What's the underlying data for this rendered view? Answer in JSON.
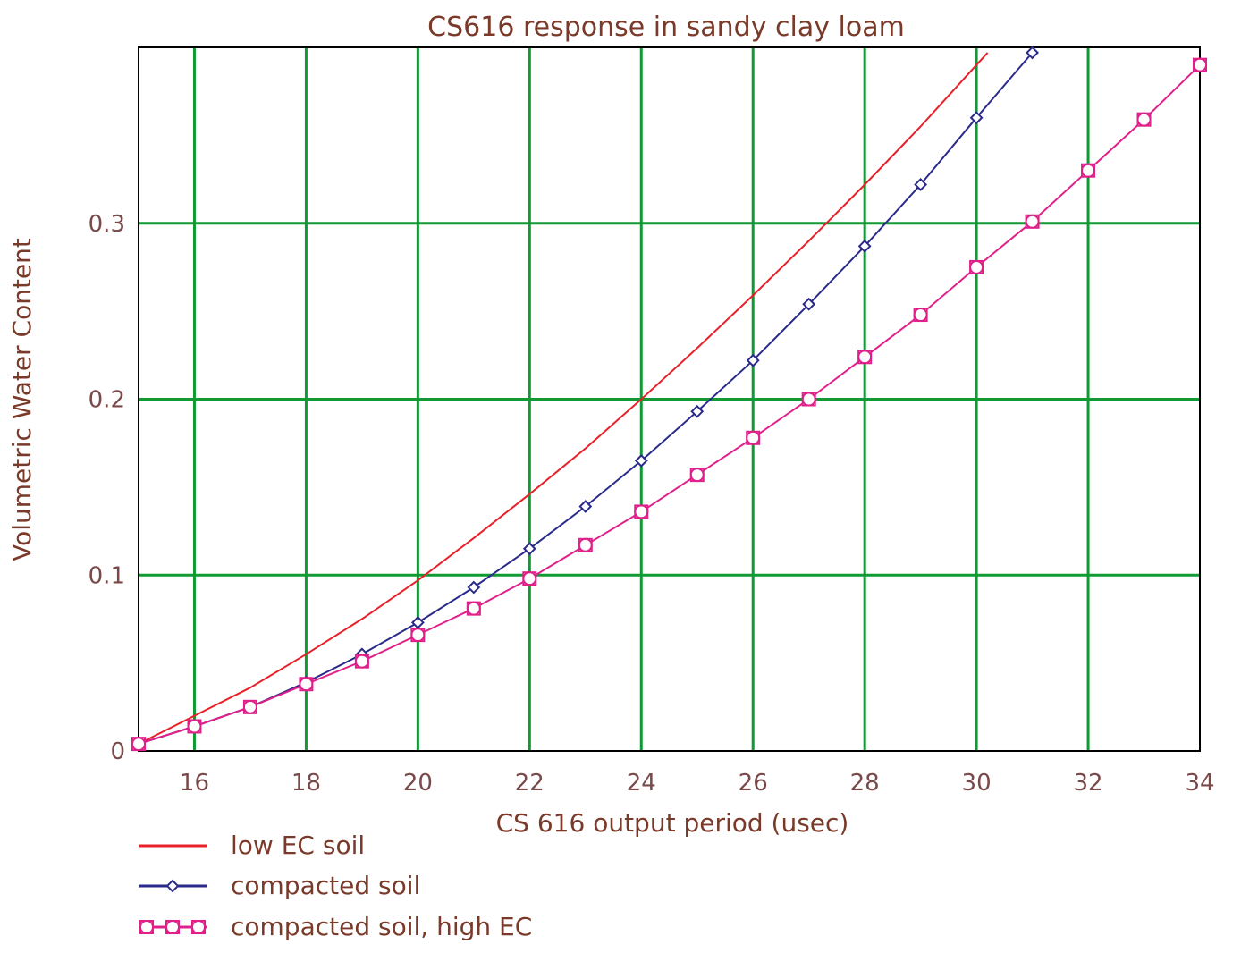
{
  "chart_data": {
    "type": "line",
    "title": "CS616 response in sandy clay loam",
    "xlabel": "CS 616 output period (usec)",
    "ylabel": "Volumetric Water Content",
    "xlim": [
      15,
      34
    ],
    "ylim": [
      0,
      0.4
    ],
    "x_ticks": [
      "16",
      "18",
      "20",
      "22",
      "24",
      "26",
      "28",
      "30",
      "32",
      "34"
    ],
    "y_ticks": [
      "0",
      "0.1",
      "0.2",
      "0.3"
    ],
    "grid": true,
    "legend_position": "bottom-left",
    "colors": {
      "grid": "#119933",
      "low_ec": "#e8202a",
      "compacted": "#2a2a8a",
      "high_ec": "#e0208a"
    },
    "series": [
      {
        "name": "low EC soil",
        "marker": "none",
        "x": [
          15,
          16,
          17,
          18,
          19,
          20,
          21,
          22,
          23,
          24,
          25,
          26,
          27,
          28,
          29,
          30,
          30.2
        ],
        "y": [
          0.004,
          0.02,
          0.036,
          0.055,
          0.075,
          0.097,
          0.121,
          0.146,
          0.172,
          0.2,
          0.229,
          0.259,
          0.29,
          0.322,
          0.355,
          0.39,
          0.397
        ]
      },
      {
        "name": "compacted soil",
        "marker": "diamond",
        "x": [
          15,
          16,
          17,
          18,
          19,
          20,
          21,
          22,
          23,
          24,
          25,
          26,
          27,
          28,
          29,
          30,
          31
        ],
        "y": [
          0.004,
          0.014,
          0.025,
          0.039,
          0.055,
          0.073,
          0.093,
          0.115,
          0.139,
          0.165,
          0.193,
          0.222,
          0.254,
          0.287,
          0.322,
          0.36,
          0.397
        ]
      },
      {
        "name": "compacted soil, high EC",
        "marker": "square-circle",
        "x": [
          15,
          16,
          17,
          18,
          19,
          20,
          21,
          22,
          23,
          24,
          25,
          26,
          27,
          28,
          29,
          30,
          31,
          32,
          33,
          34
        ],
        "y": [
          0.004,
          0.014,
          0.025,
          0.038,
          0.051,
          0.066,
          0.081,
          0.098,
          0.117,
          0.136,
          0.157,
          0.178,
          0.2,
          0.224,
          0.248,
          0.275,
          0.301,
          0.33,
          0.359,
          0.39
        ]
      }
    ]
  }
}
